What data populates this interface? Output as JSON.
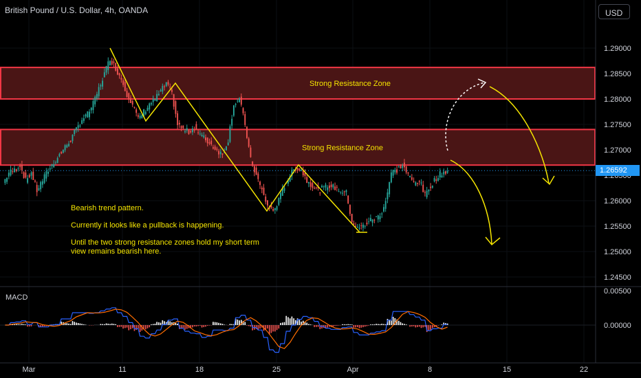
{
  "header": {
    "title": "British Pound / U.S. Dollar, 4h, OANDA",
    "currency": "USD"
  },
  "colors": {
    "up": "#26a69a",
    "down": "#ef5350",
    "zone_fill": "#4a1515",
    "zone_border": "#f23645",
    "annotation": "#f5e500",
    "macd_line": "#2962ff",
    "signal_line": "#ff6d00",
    "current_price": "#2196f3"
  },
  "annotations": {
    "zone_upper": "Strong Resistance Zone",
    "zone_lower": "Strong Resistance Zone",
    "note_1": "Bearish trend pattern.",
    "note_2": "Currently it looks like a pullback is happening.",
    "note_3": "Until the two strong resistance zones hold my short term view remains bearish here."
  },
  "indicator": {
    "macd_label": "MACD"
  },
  "current_price": "1.26592",
  "chart_data": [
    {
      "type": "candlestick",
      "title": "British Pound / U.S. Dollar, 4h, OANDA",
      "y_axis": {
        "ticks": [
          "1.29000",
          "1.28500",
          "1.28000",
          "1.27500",
          "1.27000",
          "1.26500",
          "1.26000",
          "1.25500",
          "1.25000",
          "1.24500"
        ],
        "range": [
          1.2425,
          1.2945
        ]
      },
      "x_axis": {
        "ticks": [
          "Mar",
          "11",
          "18",
          "25",
          "Apr",
          "8",
          "15",
          "22"
        ]
      },
      "resistance_zones": [
        {
          "label": "Strong Resistance Zone",
          "from": 1.28,
          "to": 1.2862
        },
        {
          "label": "Strong Resistance Zone",
          "from": 1.267,
          "to": 1.274
        }
      ],
      "price_path_close": [
        1.2635,
        1.2655,
        1.266,
        1.267,
        1.264,
        1.2655,
        1.262,
        1.264,
        1.266,
        1.2675,
        1.269,
        1.2705,
        1.272,
        1.274,
        1.276,
        1.277,
        1.279,
        1.282,
        1.285,
        1.288,
        1.286,
        1.284,
        1.281,
        1.279,
        1.276,
        1.2775,
        1.279,
        1.28,
        1.2815,
        1.283,
        1.281,
        1.275,
        1.274,
        1.2735,
        1.2745,
        1.273,
        1.272,
        1.271,
        1.27,
        1.269,
        1.272,
        1.279,
        1.28,
        1.275,
        1.268,
        1.265,
        1.262,
        1.259,
        1.258,
        1.26,
        1.263,
        1.265,
        1.2665,
        1.266,
        1.264,
        1.263,
        1.262,
        1.2625,
        1.263,
        1.2625,
        1.262,
        1.2615,
        1.256,
        1.2545,
        1.255,
        1.256,
        1.2565,
        1.257,
        1.26,
        1.2655,
        1.266,
        1.267,
        1.265,
        1.2635,
        1.264,
        1.261,
        1.263,
        1.2645,
        1.2655,
        1.2659
      ]
    },
    {
      "type": "macd",
      "title": "MACD",
      "y_axis": {
        "ticks": [
          "0.00500",
          "0.00000"
        ]
      }
    }
  ]
}
